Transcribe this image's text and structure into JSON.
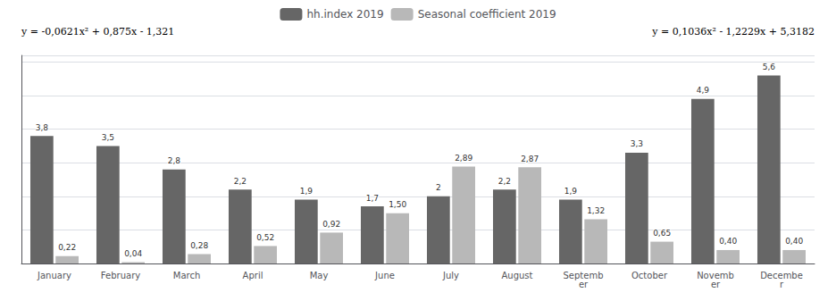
{
  "chart_data": {
    "type": "bar",
    "categories": [
      "January",
      "February",
      "March",
      "April",
      "May",
      "June",
      "July",
      "August",
      "Septemb\ner",
      "October",
      "Novemb\ner",
      "Decembe\nr"
    ],
    "series": [
      {
        "name": "hh.index 2019",
        "color": "#666666",
        "values": [
          3.8,
          3.5,
          2.8,
          2.2,
          1.9,
          1.7,
          2.0,
          2.2,
          1.9,
          3.3,
          4.9,
          5.6
        ],
        "value_labels": [
          "3,8",
          "3,5",
          "2,8",
          "2,2",
          "1,9",
          "1,7",
          "2",
          "2,2",
          "1,9",
          "3,3",
          "4,9",
          "5,6"
        ]
      },
      {
        "name": "Seasonal coefficient 2019",
        "color": "#b8b8b8",
        "values": [
          0.22,
          0.04,
          0.28,
          0.52,
          0.92,
          1.5,
          2.89,
          2.87,
          1.32,
          0.65,
          0.4,
          0.4
        ],
        "value_labels": [
          "0,22",
          "0,04",
          "0,28",
          "0,52",
          "0,92",
          "1,50",
          "2,89",
          "2,87",
          "1,32",
          "0,65",
          "0,40",
          "0,40"
        ]
      }
    ],
    "annotations": [
      "y = -0,0621x² + 0,875x - 1,321",
      "y = 0,1036x² - 1,2229x + 5,3182"
    ],
    "ylim": [
      0,
      6.2
    ],
    "yticks": [
      0,
      1,
      2,
      3,
      4,
      5,
      6
    ],
    "grid": true,
    "legend": "top",
    "data_labels": true,
    "tick_labels": "x"
  }
}
